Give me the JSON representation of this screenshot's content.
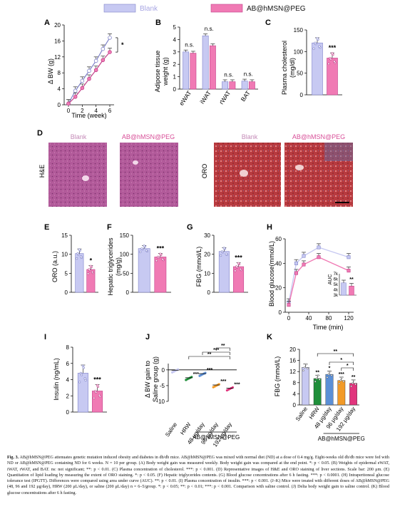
{
  "colors": {
    "blank": "#c7c9f2",
    "blank_dark": "#7f82c9",
    "treat": "#f07ab4",
    "treat_dark": "#c2418a",
    "hrw": "#1f8f3a",
    "d48": "#5b8fd6",
    "d96": "#f29a27",
    "d192": "#e1347d",
    "tissue_he": "#b25a9a",
    "tissue_oro": "#b83a3f"
  },
  "legend": {
    "blank": "Blank",
    "treat": "AB@hMSN@PEG"
  },
  "panels": {
    "A": {
      "letter": "A",
      "ylabel": "Δ BW (g)",
      "xlabel": "Time (week)",
      "yticks": [
        "0",
        "4",
        "8",
        "12",
        "16",
        "20"
      ],
      "xticks": [
        "0",
        "2",
        "4",
        "6"
      ],
      "sig": "*"
    },
    "B": {
      "letter": "B",
      "ylabel1": "Adipose tissue",
      "ylabel2": "weight (g)",
      "yticks": [
        "0",
        "1",
        "2",
        "3",
        "4",
        "5"
      ],
      "categories": [
        "eWAT",
        "iWAT",
        "rWAT",
        "BAT"
      ],
      "sig": [
        "n.s.",
        "n.s.",
        "n.s.",
        "n.s."
      ]
    },
    "C": {
      "letter": "C",
      "ylabel": "Plasma cholesterol",
      "ylabel2": "(mg/dl)",
      "yticks": [
        "0",
        "50",
        "100",
        "150"
      ],
      "sig": "***"
    },
    "D": {
      "letter": "D",
      "he_label": "H&E",
      "oro_label": "ORO",
      "col1": "Blank",
      "col2": "AB@hMSN@PEG",
      "col3": "Blank",
      "col4": "AB@hMSN@PEG"
    },
    "E": {
      "letter": "E",
      "ylabel": "ORO (a.u.)",
      "yticks": [
        "0",
        "5",
        "10",
        "15"
      ],
      "sig": "*"
    },
    "F": {
      "letter": "F",
      "ylabel1": "Hepatic triglycerides",
      "ylabel2": "(mg/g)",
      "yticks": [
        "0",
        "50",
        "100",
        "150"
      ],
      "sig": "***"
    },
    "G": {
      "letter": "G",
      "ylabel": "FBG (mmol/L)",
      "yticks": [
        "0",
        "10",
        "20",
        "30"
      ],
      "sig": "***"
    },
    "H": {
      "letter": "H",
      "ylabel": "Blood glucose(mmol/L)",
      "xlabel": "Time (min)",
      "yticks": [
        "0",
        "20",
        "40",
        "60"
      ],
      "xticks": [
        "0",
        "40",
        "80",
        "120"
      ],
      "inset_label": "AUC",
      "inset_yticks": [
        "3k",
        "4k",
        "5k",
        "6k",
        "7k"
      ],
      "inset_sig": "**"
    },
    "I": {
      "letter": "I",
      "ylabel": "Insulin (ng/mL)",
      "yticks": [
        "0",
        "2",
        "4",
        "6",
        "8"
      ],
      "sig": "***"
    },
    "J": {
      "letter": "J",
      "ylabel1": "Δ BW gain to",
      "ylabel2": "Saline group (g)",
      "yticks": [
        "0",
        "-5",
        "-10"
      ],
      "categories": [
        "Saline",
        "HRW",
        "48 μg/day",
        "96 μg/day",
        "192 μg/day"
      ],
      "group_label": "AB@hMSN@PEG",
      "sig_points": [
        "***",
        "***",
        "***",
        "***"
      ],
      "sig_brackets": [
        "**",
        "***",
        "**"
      ]
    },
    "K": {
      "letter": "K",
      "ylabel": "FBG (mmol/L)",
      "yticks": [
        "0",
        "4",
        "8",
        "12",
        "16",
        "20"
      ],
      "categories": [
        "Saline",
        "HRW",
        "48 μg/day",
        "96 μg/day",
        "192 μg/day"
      ],
      "group_label": "AB@hMSN@PEG",
      "sig_bars": [
        "**",
        "*",
        "***",
        "**"
      ],
      "sig_brackets": [
        "*",
        "*",
        "**"
      ]
    }
  },
  "chart_data": [
    {
      "panel": "A",
      "type": "line",
      "xlabel": "Time (week)",
      "ylabel": "Δ BW (g)",
      "ylim": [
        0,
        20
      ],
      "x": [
        0,
        1,
        2,
        3,
        4,
        5,
        6
      ],
      "series": [
        {
          "name": "Blank",
          "values": [
            0.3,
            3.5,
            6.0,
            8.5,
            11.0,
            14.0,
            16.8
          ]
        },
        {
          "name": "AB@hMSN@PEG",
          "values": [
            0.3,
            2.0,
            4.2,
            6.5,
            8.7,
            11.2,
            13.2
          ]
        }
      ]
    },
    {
      "panel": "B",
      "type": "bar",
      "ylabel": "Adipose tissue weight (g)",
      "ylim": [
        0,
        5
      ],
      "categories": [
        "eWAT",
        "iWAT",
        "rWAT",
        "BAT"
      ],
      "series": [
        {
          "name": "Blank",
          "values": [
            3.0,
            4.3,
            0.6,
            0.65
          ]
        },
        {
          "name": "AB@hMSN@PEG",
          "values": [
            2.9,
            3.5,
            0.6,
            0.6
          ]
        }
      ]
    },
    {
      "panel": "C",
      "type": "bar",
      "ylabel": "Plasma cholesterol (mg/dl)",
      "ylim": [
        0,
        150
      ],
      "categories": [
        "Blank",
        "AB@hMSN@PEG"
      ],
      "values": [
        120,
        85
      ]
    },
    {
      "panel": "E",
      "type": "bar",
      "ylabel": "ORO (a.u.)",
      "ylim": [
        0,
        15
      ],
      "categories": [
        "Blank",
        "AB@hMSN@PEG"
      ],
      "values": [
        10.2,
        6.0
      ]
    },
    {
      "panel": "F",
      "type": "bar",
      "ylabel": "Hepatic triglycerides (mg/g)",
      "ylim": [
        0,
        150
      ],
      "categories": [
        "Blank",
        "AB@hMSN@PEG"
      ],
      "values": [
        115,
        93
      ]
    },
    {
      "panel": "G",
      "type": "bar",
      "ylabel": "FBG (mmol/L)",
      "ylim": [
        0,
        30
      ],
      "categories": [
        "Blank",
        "AB@hMSN@PEG"
      ],
      "values": [
        21.5,
        13.5
      ]
    },
    {
      "panel": "H",
      "type": "line",
      "xlabel": "Time (min)",
      "ylabel": "Blood glucose(mmol/L)",
      "ylim": [
        0,
        60
      ],
      "x": [
        0,
        15,
        30,
        60,
        120
      ],
      "series": [
        {
          "name": "Blank",
          "values": [
            8,
            40,
            46,
            53,
            45
          ]
        },
        {
          "name": "AB@hMSN@PEG",
          "values": [
            6,
            32,
            39,
            45,
            34
          ]
        }
      ]
    },
    {
      "panel": "H-inset",
      "type": "bar",
      "ylabel": "AUC",
      "ylim": [
        3000,
        7000
      ],
      "categories": [
        "Blank",
        "AB@hMSN@PEG"
      ],
      "values": [
        5300,
        4700
      ]
    },
    {
      "panel": "I",
      "type": "bar",
      "ylabel": "Insulin (ng/mL)",
      "ylim": [
        0,
        8
      ],
      "categories": [
        "Blank",
        "AB@hMSN@PEG"
      ],
      "values": [
        4.8,
        2.6
      ]
    },
    {
      "panel": "J",
      "type": "scatter",
      "ylabel": "Δ BW gain to Saline group (g)",
      "ylim": [
        -10,
        2
      ],
      "categories": [
        "Saline",
        "HRW",
        "48 μg/day",
        "96 μg/day",
        "192 μg/day"
      ],
      "values": [
        -0.1,
        -2.5,
        -1.2,
        -4.8,
        -5.8
      ]
    },
    {
      "panel": "K",
      "type": "bar",
      "ylabel": "FBG (mmol/L)",
      "ylim": [
        0,
        20
      ],
      "categories": [
        "Saline",
        "HRW",
        "48 μg/day",
        "96 μg/day",
        "192 μg/day"
      ],
      "values": [
        13.5,
        9.5,
        11.0,
        8.8,
        7.8
      ]
    }
  ],
  "caption": {
    "fig_label": "Fig. 3.",
    "text": "AB@hMSN@PEG attenuates genetic mutation induced obesity and diabetes in db/db mice. AB@hMSN@PEG was mixed with normal diet (ND) at a dose of 0.4 mg/g. Eight-weeks old db/db mice were fed with ND or AB@hMSN@PEG containing ND for 6 weeks. N = 10 per group. (A) Body weight gain was measured weekly. Body weight gain was compared at the end point. *: p < 0.05. (B) Weights of epidermal eWAT, iWAT, rWAT, and BAT. ns: not significant; **: p < 0.01. (C) Plasma concentration of cholesterol. ***: p < 0.001. (D) Representative images of H&E and ORO staining of liver sections. Scale bar: 200 μm. (E) Quantitation of lipid loading by measuring the extent of ORO staining. *: p < 0.05. (F) Hepatic triglycerides contents. (G) Blood glucose concentrations after 6 h fasting. ***: p < 0.0001. (H) Intraperitoneal glucose tolerance test (IPGTT). Differences were compared using area under curve (AUC). **: p < 0.01. (I) Plasma concentration of insulin. ***: p < 0.001. (J–K) Mice were treated with different doses of AB@hMSN@PEG (48, 96 and 192 μg/day), HRW (200 μL/day), or saline (200 μL/day) n = 6–5/group. *: p < 0.05; **: p < 0.01; ***: p < 0.001. Comparison with saline control. (J) Delta body weight gain to saline control. (K) Blood glucose concentrations after 6 h fasting."
  }
}
